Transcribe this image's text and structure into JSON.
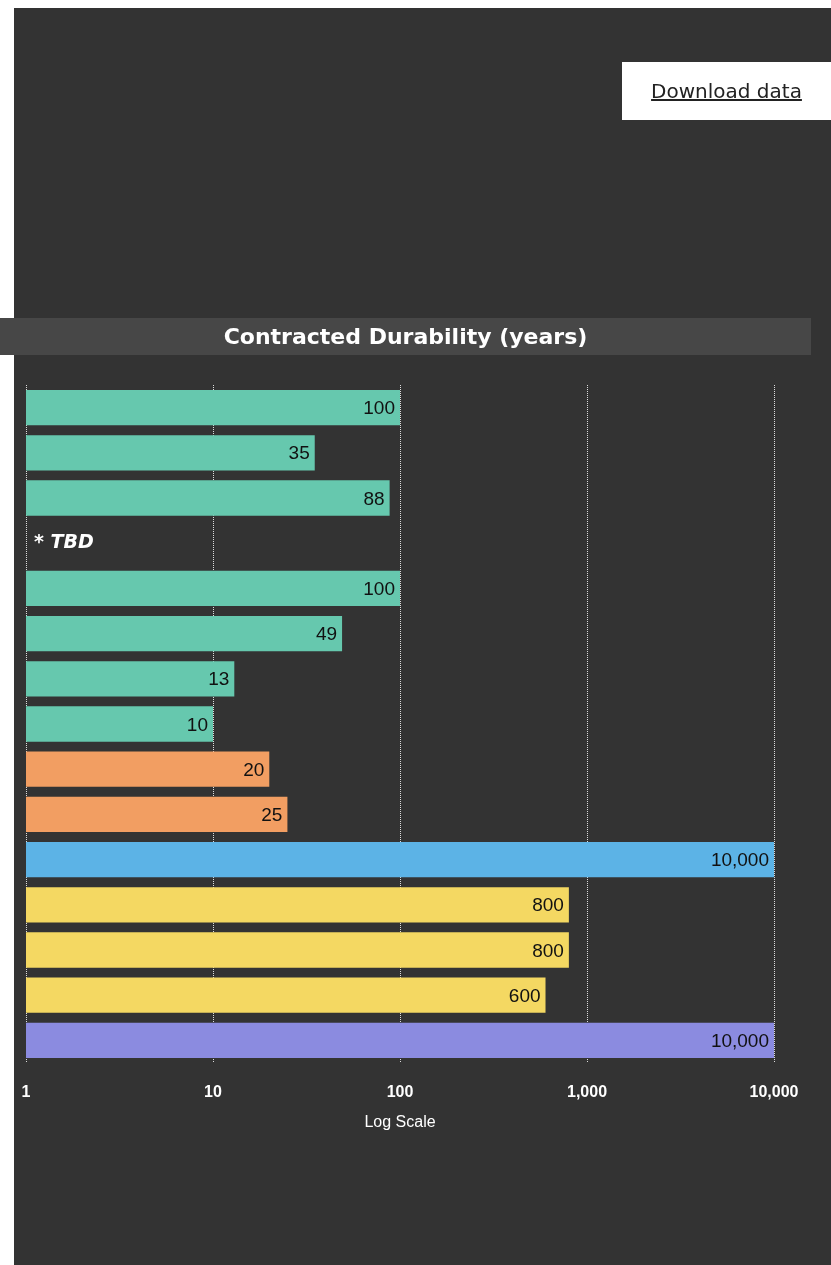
{
  "chart_data": {
    "type": "bar",
    "orientation": "horizontal",
    "title": "Contracted Durability (years)",
    "xlabel": "Log Scale",
    "categories": [
      null,
      null,
      null,
      null,
      null,
      null,
      null,
      null,
      null,
      null,
      null,
      null,
      null,
      null,
      null
    ],
    "values": [
      100,
      35,
      88,
      null,
      100,
      49,
      13,
      10,
      20,
      25,
      10000,
      800,
      800,
      600,
      10000
    ],
    "value_labels": [
      "100",
      "35",
      "88",
      null,
      "100",
      "49",
      "13",
      "10",
      "20",
      "25",
      "10,000",
      "800",
      "800",
      "600",
      "10,000"
    ],
    "colors": [
      "#66c8ae",
      "#66c8ae",
      "#66c8ae",
      "#66c8ae",
      "#66c8ae",
      "#66c8ae",
      "#66c8ae",
      "#66c8ae",
      "#f29e62",
      "#f29e62",
      "#5cb3e6",
      "#f4d862",
      "#f4d862",
      "#f4d862",
      "#8b8be0"
    ],
    "log": "x",
    "xlim": [
      1,
      10000
    ],
    "xticks": [
      1,
      10,
      100,
      {
        "value": 1000,
        "label": "1,000"
      },
      {
        "value": 10000,
        "label": "10,000"
      }
    ],
    "grid": "x",
    "annotations": [
      "* TBD",
      "Download data"
    ]
  }
}
